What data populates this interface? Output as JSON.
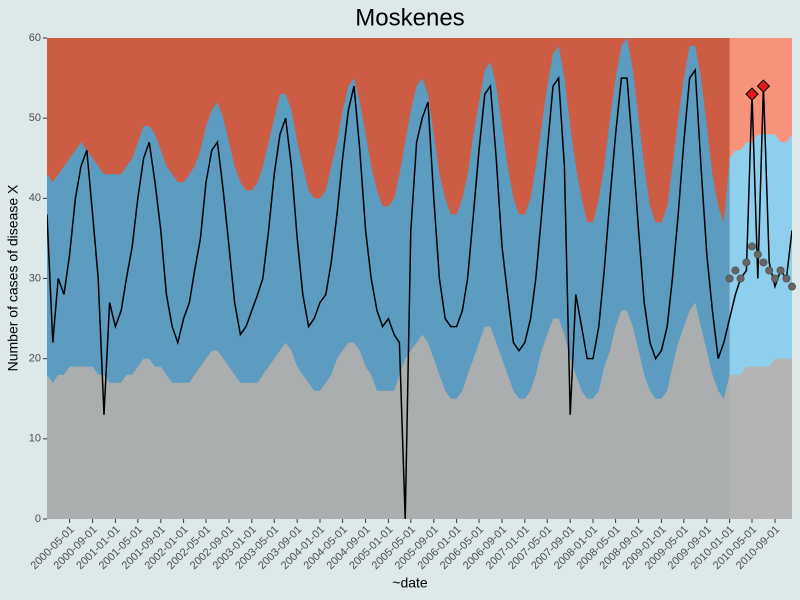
{
  "chart_data": {
    "type": "surveillance",
    "title": "Moskenes",
    "x_label": "~date",
    "y_label": "Number of cases of disease X",
    "background": "#cd5c44",
    "forecast_from": "2010-01-01",
    "forecast_background": "#f8937b",
    "xlim": [
      "2000-01-01",
      "2010-12-01"
    ],
    "ylim": [
      0,
      60
    ],
    "yticks": [
      0,
      10,
      20,
      30,
      40,
      50,
      60
    ],
    "xticks": [
      "2000-05-01",
      "2000-09-01",
      "2001-01-01",
      "2001-05-01",
      "2001-09-01",
      "2002-01-01",
      "2002-05-01",
      "2002-09-01",
      "2003-01-01",
      "2003-05-01",
      "2003-09-01",
      "2004-01-01",
      "2004-05-01",
      "2004-09-01",
      "2005-01-01",
      "2005-05-01",
      "2005-09-01",
      "2006-01-01",
      "2006-05-01",
      "2006-09-01",
      "2007-01-01",
      "2007-05-01",
      "2007-09-01",
      "2008-01-01",
      "2008-05-01",
      "2008-09-01",
      "2009-01-01",
      "2009-05-01",
      "2009-09-01",
      "2010-01-01",
      "2010-05-01",
      "2010-09-01"
    ],
    "x": [
      "2000-01-01",
      "2000-02-01",
      "2000-03-01",
      "2000-04-01",
      "2000-05-01",
      "2000-06-01",
      "2000-07-01",
      "2000-08-01",
      "2000-09-01",
      "2000-10-01",
      "2000-11-01",
      "2000-12-01",
      "2001-01-01",
      "2001-02-01",
      "2001-03-01",
      "2001-04-01",
      "2001-05-01",
      "2001-06-01",
      "2001-07-01",
      "2001-08-01",
      "2001-09-01",
      "2001-10-01",
      "2001-11-01",
      "2001-12-01",
      "2002-01-01",
      "2002-02-01",
      "2002-03-01",
      "2002-04-01",
      "2002-05-01",
      "2002-06-01",
      "2002-07-01",
      "2002-08-01",
      "2002-09-01",
      "2002-10-01",
      "2002-11-01",
      "2002-12-01",
      "2003-01-01",
      "2003-02-01",
      "2003-03-01",
      "2003-04-01",
      "2003-05-01",
      "2003-06-01",
      "2003-07-01",
      "2003-08-01",
      "2003-09-01",
      "2003-10-01",
      "2003-11-01",
      "2003-12-01",
      "2004-01-01",
      "2004-02-01",
      "2004-03-01",
      "2004-04-01",
      "2004-05-01",
      "2004-06-01",
      "2004-07-01",
      "2004-08-01",
      "2004-09-01",
      "2004-10-01",
      "2004-11-01",
      "2004-12-01",
      "2005-01-01",
      "2005-02-01",
      "2005-03-01",
      "2005-04-01",
      "2005-05-01",
      "2005-06-01",
      "2005-07-01",
      "2005-08-01",
      "2005-09-01",
      "2005-10-01",
      "2005-11-01",
      "2005-12-01",
      "2006-01-01",
      "2006-02-01",
      "2006-03-01",
      "2006-04-01",
      "2006-05-01",
      "2006-06-01",
      "2006-07-01",
      "2006-08-01",
      "2006-09-01",
      "2006-10-01",
      "2006-11-01",
      "2006-12-01",
      "2007-01-01",
      "2007-02-01",
      "2007-03-01",
      "2007-04-01",
      "2007-05-01",
      "2007-06-01",
      "2007-07-01",
      "2007-08-01",
      "2007-09-01",
      "2007-10-01",
      "2007-11-01",
      "2007-12-01",
      "2008-01-01",
      "2008-02-01",
      "2008-03-01",
      "2008-04-01",
      "2008-05-01",
      "2008-06-01",
      "2008-07-01",
      "2008-08-01",
      "2008-09-01",
      "2008-10-01",
      "2008-11-01",
      "2008-12-01",
      "2009-01-01",
      "2009-02-01",
      "2009-03-01",
      "2009-04-01",
      "2009-05-01",
      "2009-06-01",
      "2009-07-01",
      "2009-08-01",
      "2009-09-01",
      "2009-10-01",
      "2009-11-01",
      "2009-12-01",
      "2010-01-01",
      "2010-02-01",
      "2010-03-01",
      "2010-04-01",
      "2010-05-01",
      "2010-06-01",
      "2010-07-01",
      "2010-08-01",
      "2010-09-01",
      "2010-10-01",
      "2010-11-01",
      "2010-12-01"
    ],
    "series": [
      {
        "kind": "area",
        "color": "#5b9cc0",
        "forecast_color": "#8dcfec",
        "values": [
          43,
          42,
          43,
          44,
          45,
          46,
          47,
          46,
          45,
          44,
          43,
          43,
          43,
          43,
          44,
          45,
          47,
          49,
          49,
          48,
          46,
          44,
          43,
          42,
          42,
          43,
          44,
          46,
          49,
          51,
          52,
          50,
          47,
          44,
          42,
          41,
          41,
          42,
          44,
          47,
          50,
          53,
          53,
          51,
          47,
          44,
          41,
          40,
          40,
          41,
          44,
          47,
          51,
          54,
          55,
          52,
          48,
          44,
          41,
          39,
          39,
          40,
          43,
          47,
          51,
          54,
          55,
          53,
          48,
          43,
          40,
          38,
          38,
          40,
          43,
          48,
          52,
          56,
          57,
          54,
          49,
          44,
          40,
          38,
          38,
          40,
          44,
          49,
          54,
          58,
          59,
          55,
          49,
          44,
          40,
          37,
          37,
          40,
          44,
          50,
          55,
          59,
          60,
          56,
          50,
          44,
          39,
          37,
          37,
          39,
          44,
          50,
          55,
          59,
          59,
          55,
          49,
          43,
          39,
          37,
          45,
          46,
          46,
          47,
          47,
          48,
          48,
          48,
          48,
          47,
          47,
          48
        ]
      },
      {
        "kind": "area",
        "color": "#aaaeae",
        "forecast_color": "#b4b4b4",
        "values": [
          18,
          17,
          18,
          18,
          19,
          19,
          19,
          19,
          19,
          18,
          18,
          17,
          17,
          17,
          18,
          18,
          19,
          20,
          20,
          19,
          19,
          18,
          17,
          17,
          17,
          17,
          18,
          19,
          20,
          21,
          21,
          20,
          19,
          18,
          17,
          17,
          17,
          17,
          18,
          19,
          20,
          21,
          22,
          21,
          19,
          18,
          17,
          16,
          16,
          17,
          18,
          20,
          21,
          22,
          22,
          21,
          19,
          18,
          16,
          16,
          16,
          16,
          18,
          20,
          21,
          22,
          23,
          22,
          20,
          18,
          16,
          15,
          15,
          16,
          18,
          20,
          22,
          24,
          24,
          22,
          20,
          18,
          16,
          15,
          15,
          16,
          18,
          21,
          23,
          25,
          25,
          23,
          20,
          18,
          16,
          15,
          15,
          16,
          19,
          21,
          24,
          26,
          26,
          24,
          21,
          18,
          16,
          15,
          15,
          16,
          19,
          22,
          24,
          26,
          27,
          24,
          21,
          18,
          16,
          15,
          18,
          18,
          18,
          19,
          19,
          19,
          19,
          19,
          20,
          20,
          20,
          20
        ]
      },
      {
        "kind": "line",
        "color": "#000000",
        "values": [
          38,
          22,
          30,
          28,
          33,
          40,
          44,
          46,
          38,
          30,
          13,
          27,
          24,
          26,
          30,
          34,
          40,
          45,
          47,
          42,
          36,
          28,
          24,
          22,
          25,
          27,
          31,
          35,
          42,
          46,
          47,
          41,
          34,
          27,
          23,
          24,
          26,
          28,
          30,
          36,
          43,
          48,
          50,
          44,
          35,
          28,
          24,
          25,
          27,
          28,
          32,
          38,
          45,
          51,
          54,
          46,
          36,
          30,
          26,
          24,
          25,
          23,
          22,
          0,
          36,
          47,
          50,
          52,
          40,
          30,
          25,
          24,
          24,
          26,
          30,
          38,
          46,
          53,
          54,
          45,
          34,
          28,
          22,
          21,
          22,
          25,
          30,
          38,
          46,
          54,
          55,
          44,
          13,
          28,
          24,
          20,
          20,
          24,
          31,
          40,
          48,
          55,
          55,
          46,
          36,
          27,
          22,
          20,
          21,
          24,
          30,
          38,
          47,
          55,
          56,
          44,
          33,
          26,
          20,
          22,
          25,
          28,
          30,
          31,
          53,
          30,
          54,
          32,
          29,
          31,
          30,
          36
        ]
      },
      {
        "kind": "points",
        "color": "#666666",
        "x": [
          "2010-01-01",
          "2010-02-01",
          "2010-03-01",
          "2010-04-01",
          "2010-05-01",
          "2010-06-01",
          "2010-07-01",
          "2010-08-01",
          "2010-09-01",
          "2010-10-01",
          "2010-11-01",
          "2010-12-01"
        ],
        "values": [
          30,
          31,
          30,
          32,
          34,
          33,
          32,
          31,
          30,
          31,
          30,
          29
        ]
      },
      {
        "kind": "diamonds",
        "color": "#e31a1c",
        "x": [
          "2010-05-01",
          "2010-07-01"
        ],
        "values": [
          53,
          54
        ]
      }
    ]
  }
}
